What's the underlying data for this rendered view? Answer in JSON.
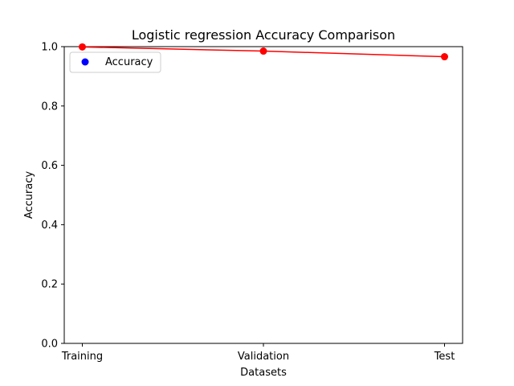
{
  "chart_data": {
    "type": "line",
    "title": "Logistic regression Accuracy Comparison",
    "xlabel": "Datasets",
    "ylabel": "Accuracy",
    "categories": [
      "Training",
      "Validation",
      "Test"
    ],
    "ylim": [
      0.0,
      1.0
    ],
    "yticks": [
      "0.0",
      "0.2",
      "0.4",
      "0.6",
      "0.8",
      "1.0"
    ],
    "series": [
      {
        "name": "Accuracy",
        "values": [
          0.999,
          0.985,
          0.966
        ],
        "line_color": "#ff0000",
        "marker_color": "#ff0000",
        "legend_marker_color": "#0000ff"
      }
    ],
    "grid": false,
    "legend_position": "upper-left"
  }
}
